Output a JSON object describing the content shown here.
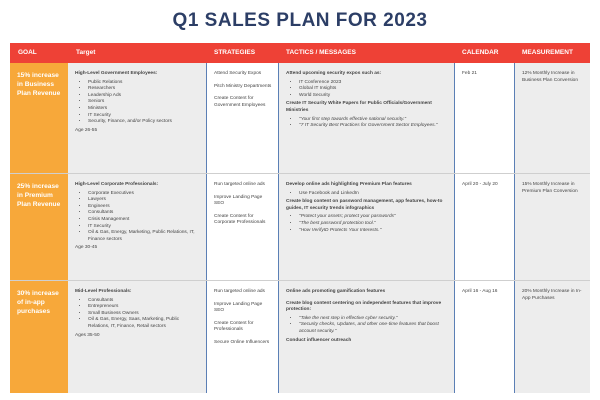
{
  "title": "Q1 SALES PLAN FOR 2023",
  "headers": {
    "goal": "GOAL",
    "target": "Target",
    "strategies": "STRATEGIES",
    "tactics": "TACTICS / MESSAGES",
    "calendar": "CALENDAR",
    "measurement": "MEASUREMENT"
  },
  "rows": [
    {
      "goal": "15% increase in Business Plan Revenue",
      "target_title": "High-Level Government Employees:",
      "target_items": [
        "Public Relations",
        "Researchers",
        "Leadership Ads",
        "Seniors",
        "Ministers",
        "IT Security",
        "Security, Finance, and/or Policy sectors"
      ],
      "target_age": "Age 26-55",
      "strategies": [
        "Attend Security Expos",
        "Pitch Ministry Departments",
        "Create Content for Government Employees"
      ],
      "tactic1_title": "Attend upcoming security expos such as:",
      "tactic1_items": [
        "IT Conference 2023",
        "Global IT Insights",
        "World Security"
      ],
      "tactic2_title": "Create IT Security White Papers for Public Officials/Government Ministries",
      "tactic2_items": [
        "\"Your first step towards effective national security.\"",
        "\"7 IT Security Best Practices for Government Sector Employees.\""
      ],
      "calendar": "Feb 21",
      "measurement": "12% Monthly Increase in Business Plan Conversion"
    },
    {
      "goal": "25% increase in Premium Plan Revenue",
      "target_title": "High-Level Corporate Professionals:",
      "target_items": [
        "Corporate Executives",
        "Lawyers",
        "Engineers",
        "Consultants",
        "Crisis Management",
        "IT Security",
        "Oil & Gas, Energy, Marketing, Public Relations, IT, Finance sectors"
      ],
      "target_age": "Age 30-45",
      "strategies": [
        "Run targeted online ads",
        "Improve Landing Page SEO",
        "Create Content for Corporate Professionals"
      ],
      "tactic1_title": "Develop online ads highlighting Premium Plan features",
      "tactic1_items": [
        "Use Facebook and LinkedIn"
      ],
      "tactic2_title": "Create blog content on password management, app features, how-to guides, IT security trends infographics",
      "tactic2_items": [
        "\"Protect your assets; protect your passwords\"",
        "\"The best password protection tool.\"",
        "\"How VerifyID Protects Your Interests.\""
      ],
      "calendar": "April 20 - July 20",
      "measurement": "15% Monthly Increase in Premium Plan Conversion"
    },
    {
      "goal": "30% increase of in-app purchases",
      "target_title": "Mid-Level Professionals:",
      "target_items": [
        "Consultants",
        "Entrepreneurs",
        "Small Business Owners",
        "Oil & Gas, Energy, Saas, Marketing, Public Relations, IT, Finance, Retail sectors"
      ],
      "target_age": "Ages 35-50",
      "strategies": [
        "Run targeted online ads",
        "Improve Landing Page SEO",
        "Create Content for Professionals",
        "Secure Online Influencers"
      ],
      "tactic1_title": "Online ads promoting gamification features",
      "tactic2_title": "Create blog content centering on independent features that improve protection:",
      "tactic2_items": [
        "\"Take the next step in effective cyber security.\"",
        "\"Security checks, Updates, and other one-time features that boost account security.\""
      ],
      "tactic3_title": "Conduct influencer outreach",
      "calendar": "April 16 - Aug 16",
      "measurement": "20% Monthly Increase in In-App Purchases"
    }
  ]
}
